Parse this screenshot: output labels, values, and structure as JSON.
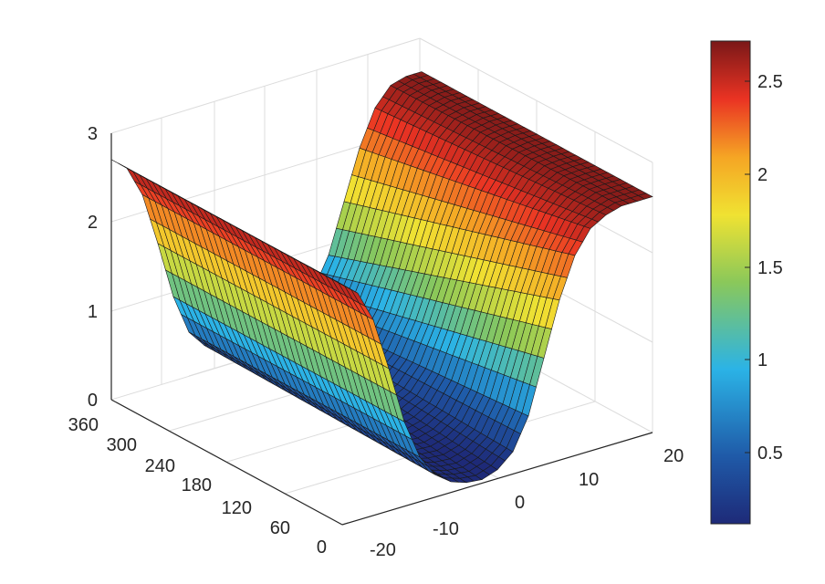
{
  "chart_data": {
    "type": "surface",
    "title": "",
    "xlabel": "",
    "ylabel": "",
    "zlabel": "",
    "x_axis": {
      "range": [
        -20,
        20
      ],
      "ticks": [
        "-20",
        "-10",
        "0",
        "10",
        "20"
      ]
    },
    "y_axis": {
      "range": [
        0,
        360
      ],
      "ticks": [
        "0",
        "60",
        "120",
        "180",
        "240",
        "300",
        "360"
      ]
    },
    "z_axis": {
      "range": [
        0,
        3
      ],
      "ticks": [
        "0",
        "1",
        "2",
        "3"
      ]
    },
    "grid": true,
    "colormap": "jet-like (dark blue to dark red)",
    "colorbar": {
      "range": [
        0.1,
        2.7
      ],
      "ticks": [
        "0.5",
        "1",
        "1.5",
        "2",
        "2.5"
      ],
      "placement": "right"
    },
    "surface_profile": {
      "x": [
        -20,
        -18,
        -16,
        -14,
        -12,
        -10,
        -8,
        -6,
        -4,
        -2,
        0,
        2,
        4,
        6,
        8,
        10,
        12,
        14,
        16,
        18,
        20
      ],
      "z_at_y0": [
        2.7,
        2.55,
        2.2,
        1.6,
        0.95,
        0.5,
        0.25,
        0.12,
        0.06,
        0.04,
        0.1,
        0.25,
        0.6,
        1.2,
        1.8,
        2.25,
        2.5,
        2.6,
        2.65,
        2.65,
        2.65
      ],
      "z_at_y360": [
        2.7,
        2.55,
        2.2,
        1.6,
        0.95,
        0.5,
        0.3,
        0.28,
        0.3,
        0.32,
        0.34,
        0.36,
        0.4,
        0.55,
        0.9,
        1.45,
        2.0,
        2.4,
        2.6,
        2.65,
        2.65
      ]
    },
    "colors": {
      "scale": [
        "#1e2a78",
        "#1f5aa8",
        "#2bb3e6",
        "#8ac85a",
        "#f0e232",
        "#f5a524",
        "#ea3323",
        "#7a1818"
      ],
      "axis": "#262626",
      "grid": "#dcdcdc"
    }
  }
}
